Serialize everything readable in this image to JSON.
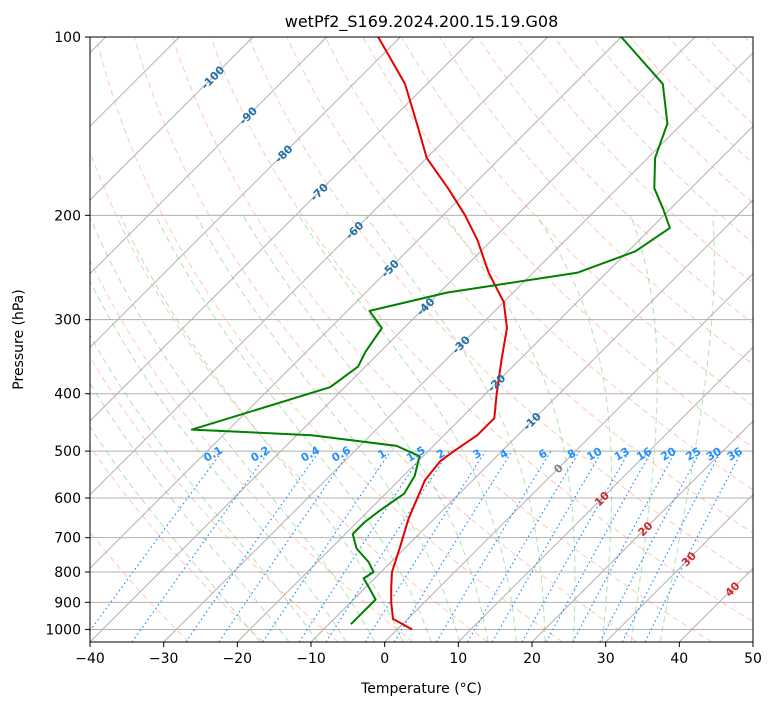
{
  "chart_data": {
    "type": "line",
    "title": "wetPf2_S169.2024.200.15.19.G08",
    "xlabel": "Temperature (°C)",
    "ylabel": "Pressure (hPa)",
    "xlim": [
      -40,
      50
    ],
    "ylim": [
      1050,
      100
    ],
    "y_scale": "log",
    "skew": true,
    "x_ticks": [
      -40,
      -30,
      -20,
      -10,
      0,
      10,
      20,
      30,
      40,
      50
    ],
    "y_ticks": [
      100,
      200,
      300,
      400,
      500,
      600,
      700,
      800,
      900,
      1000
    ],
    "grid": true,
    "series": [
      {
        "color": "#e60000",
        "points": [
          [
            1000,
            2
          ],
          [
            960,
            -2
          ],
          [
            900,
            -4.5
          ],
          [
            850,
            -6.5
          ],
          [
            800,
            -8.5
          ],
          [
            720,
            -11
          ],
          [
            650,
            -13.5
          ],
          [
            560,
            -16.5
          ],
          [
            520,
            -17
          ],
          [
            500,
            -16.5
          ],
          [
            470,
            -15.5
          ],
          [
            440,
            -15.5
          ],
          [
            400,
            -18.5
          ],
          [
            350,
            -22.5
          ],
          [
            310,
            -26
          ],
          [
            280,
            -30
          ],
          [
            250,
            -36
          ],
          [
            220,
            -42
          ],
          [
            200,
            -47
          ],
          [
            180,
            -53
          ],
          [
            160,
            -60
          ],
          [
            140,
            -66
          ],
          [
            120,
            -73
          ],
          [
            100,
            -83
          ]
        ]
      },
      {
        "color": "#008000",
        "points": [
          [
            980,
            -7
          ],
          [
            950,
            -7
          ],
          [
            920,
            -7
          ],
          [
            890,
            -7
          ],
          [
            850,
            -9.5
          ],
          [
            820,
            -11.5
          ],
          [
            800,
            -11
          ],
          [
            770,
            -13
          ],
          [
            730,
            -16.5
          ],
          [
            690,
            -19
          ],
          [
            660,
            -19
          ],
          [
            630,
            -18.5
          ],
          [
            590,
            -17.5
          ],
          [
            550,
            -18.5
          ],
          [
            510,
            -20.5
          ],
          [
            490,
            -25
          ],
          [
            470,
            -38
          ],
          [
            460,
            -55
          ],
          [
            390,
            -42
          ],
          [
            360,
            -41
          ],
          [
            340,
            -42
          ],
          [
            310,
            -43
          ],
          [
            290,
            -47
          ],
          [
            270,
            -39
          ],
          [
            250,
            -24
          ],
          [
            230,
            -19
          ],
          [
            210,
            -17.5
          ],
          [
            195,
            -21
          ],
          [
            180,
            -25
          ],
          [
            160,
            -29
          ],
          [
            140,
            -32
          ],
          [
            120,
            -38
          ],
          [
            100,
            -50
          ]
        ]
      }
    ],
    "isotherm_labels": [
      "-100",
      "-90",
      "-80",
      "-70",
      "-60",
      "-50",
      "-40",
      "-30",
      "-20",
      "-10",
      "0",
      "10",
      "20",
      "30",
      "40"
    ],
    "mixing_ratio_labels": [
      "0.1",
      "0.2",
      "0.4",
      "0.6",
      "1",
      "1.5",
      "2",
      "3",
      "4",
      "6",
      "8",
      "10",
      "13",
      "16",
      "20",
      "25",
      "30",
      "36"
    ],
    "colors": {
      "temperature": "#e60000",
      "dewpoint": "#008000",
      "isotherm_label_cold": "#1f6fa8",
      "isotherm_label_warm": "#d62728",
      "isotherm_label_zero": "#808080",
      "mixing_ratio": "#1e90ff",
      "dry_adiabat": "#ff9b80",
      "moist_adiabat": "#6fbf6f",
      "grid": "#b0b0b0"
    }
  }
}
